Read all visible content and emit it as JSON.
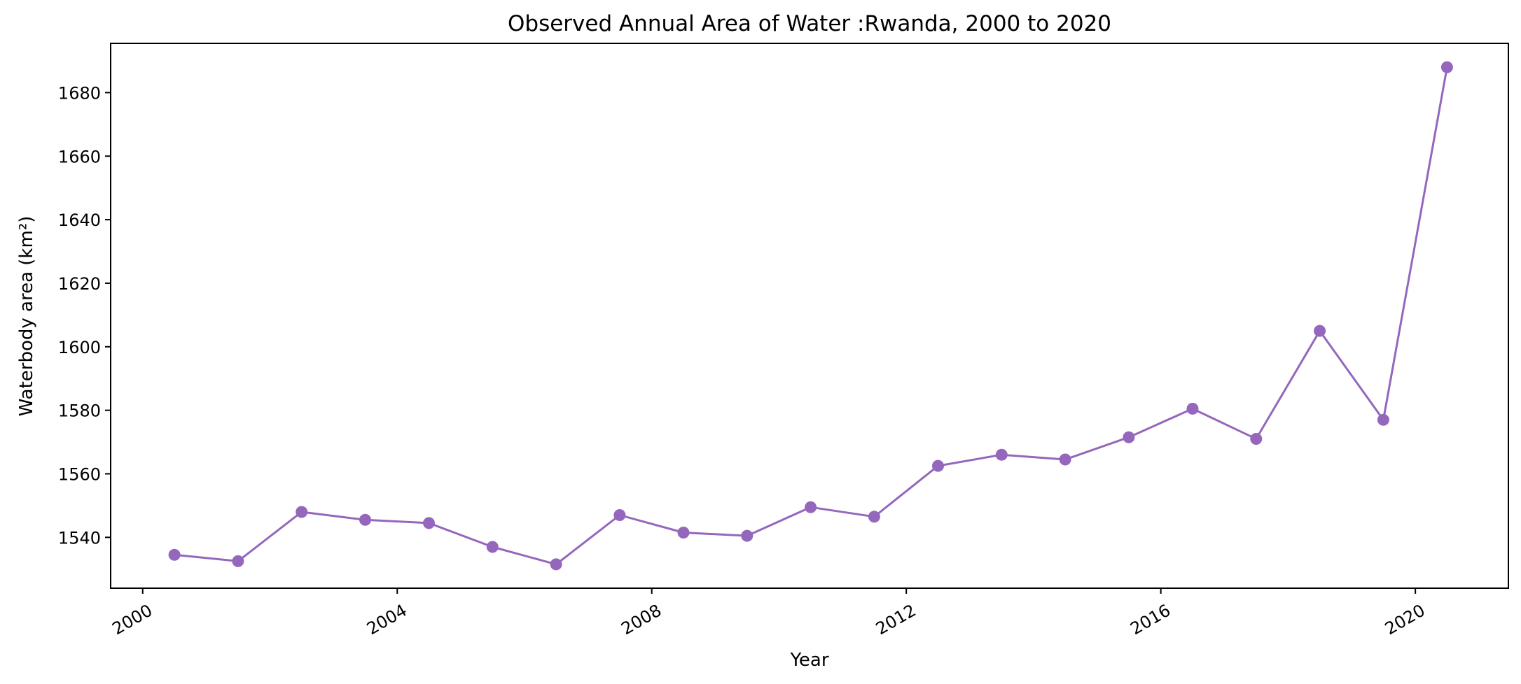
{
  "chart_data": {
    "type": "line",
    "title": "Observed Annual Area of Water :Rwanda, 2000 to 2020",
    "xlabel": "Year",
    "ylabel": "Waterbody area (km²)",
    "x_ticks": [
      "2000",
      "2004",
      "2008",
      "2012",
      "2016",
      "2020"
    ],
    "y_ticks": [
      "1540",
      "1560",
      "1580",
      "1600",
      "1620",
      "1640",
      "1660",
      "1680"
    ],
    "xlim": [
      "1999-07-01",
      "2021-06-18"
    ],
    "ylim": [
      1524,
      1695.5
    ],
    "grid": false,
    "series": [
      {
        "color": "#9467bd",
        "marker": "circle",
        "x": [
          "2000-07-01",
          "2001-07-01",
          "2002-07-01",
          "2003-07-01",
          "2004-07-01",
          "2005-07-01",
          "2006-07-01",
          "2007-07-01",
          "2008-07-01",
          "2009-07-01",
          "2010-07-01",
          "2011-07-01",
          "2012-07-01",
          "2013-07-01",
          "2014-07-01",
          "2015-07-01",
          "2016-07-01",
          "2017-07-01",
          "2018-07-01",
          "2019-07-01",
          "2020-07-01"
        ],
        "y": [
          1534.5,
          1532.5,
          1548,
          1545.5,
          1544.5,
          1537,
          1531.5,
          1547,
          1541.5,
          1540.5,
          1549.5,
          1546.5,
          1562.5,
          1566,
          1564.5,
          1571.5,
          1580.5,
          1571,
          1605,
          1577,
          1688
        ]
      }
    ]
  }
}
